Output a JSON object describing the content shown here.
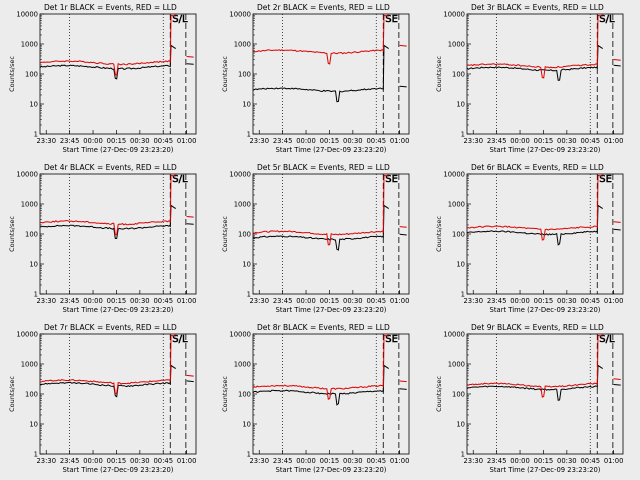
{
  "common": {
    "xlabel": "Start Time (27-Dec-09 23:23:20)",
    "ylabel": "Counts/sec",
    "x_ticks": [
      "23:30",
      "23:45",
      "00:00",
      "00:15",
      "00:30",
      "00:45",
      "01:00"
    ],
    "y_ticks": [
      "1",
      "10",
      "100",
      "1000",
      "10000"
    ],
    "colors": {
      "events": "#000000",
      "lld": "#dd0000",
      "background": "#ececec"
    }
  },
  "chart_data": [
    {
      "type": "line",
      "title": "Det 1r BLACK = Events, RED = LLD",
      "marker": "S/L",
      "scale": "log",
      "ylim": [
        1,
        10000
      ],
      "series": [
        {
          "name": "BLACK",
          "base": 170
        },
        {
          "name": "RED",
          "base": 240
        }
      ]
    },
    {
      "type": "line",
      "title": "Det 2r BLACK = Events, RED = LLD",
      "marker": "SE",
      "scale": "log",
      "ylim": [
        1,
        10000
      ],
      "series": [
        {
          "name": "BLACK",
          "base": 30
        },
        {
          "name": "RED",
          "base": 560
        }
      ]
    },
    {
      "type": "line",
      "title": "Det 3r BLACK = Events, RED = LLD",
      "marker": "S/L",
      "scale": "log",
      "ylim": [
        1,
        10000
      ],
      "series": [
        {
          "name": "BLACK",
          "base": 150
        },
        {
          "name": "RED",
          "base": 190
        }
      ]
    },
    {
      "type": "line",
      "title": "Det 4r BLACK = Events, RED = LLD",
      "marker": "S/L",
      "scale": "log",
      "ylim": [
        1,
        10000
      ],
      "series": [
        {
          "name": "BLACK",
          "base": 170
        },
        {
          "name": "RED",
          "base": 240
        }
      ]
    },
    {
      "type": "line",
      "title": "Det 5r BLACK = Events, RED = LLD",
      "marker": "SE",
      "scale": "log",
      "ylim": [
        1,
        10000
      ],
      "series": [
        {
          "name": "BLACK",
          "base": 75
        },
        {
          "name": "RED",
          "base": 110
        }
      ]
    },
    {
      "type": "line",
      "title": "Det 6r BLACK = Events, RED = LLD",
      "marker": "SE",
      "scale": "log",
      "ylim": [
        1,
        10000
      ],
      "series": [
        {
          "name": "BLACK",
          "base": 110
        },
        {
          "name": "RED",
          "base": 160
        }
      ]
    },
    {
      "type": "line",
      "title": "Det 7r BLACK = Events, RED = LLD",
      "marker": "S/L",
      "scale": "log",
      "ylim": [
        1,
        10000
      ],
      "series": [
        {
          "name": "BLACK",
          "base": 210
        },
        {
          "name": "RED",
          "base": 260
        }
      ]
    },
    {
      "type": "line",
      "title": "Det 8r BLACK = Events, RED = LLD",
      "marker": "SE",
      "scale": "log",
      "ylim": [
        1,
        10000
      ],
      "series": [
        {
          "name": "BLACK",
          "base": 115
        },
        {
          "name": "RED",
          "base": 170
        }
      ]
    },
    {
      "type": "line",
      "title": "Det 9r BLACK = Events, RED = LLD",
      "marker": "S/L",
      "scale": "log",
      "ylim": [
        1,
        10000
      ],
      "series": [
        {
          "name": "BLACK",
          "base": 160
        },
        {
          "name": "RED",
          "base": 200
        }
      ]
    }
  ]
}
